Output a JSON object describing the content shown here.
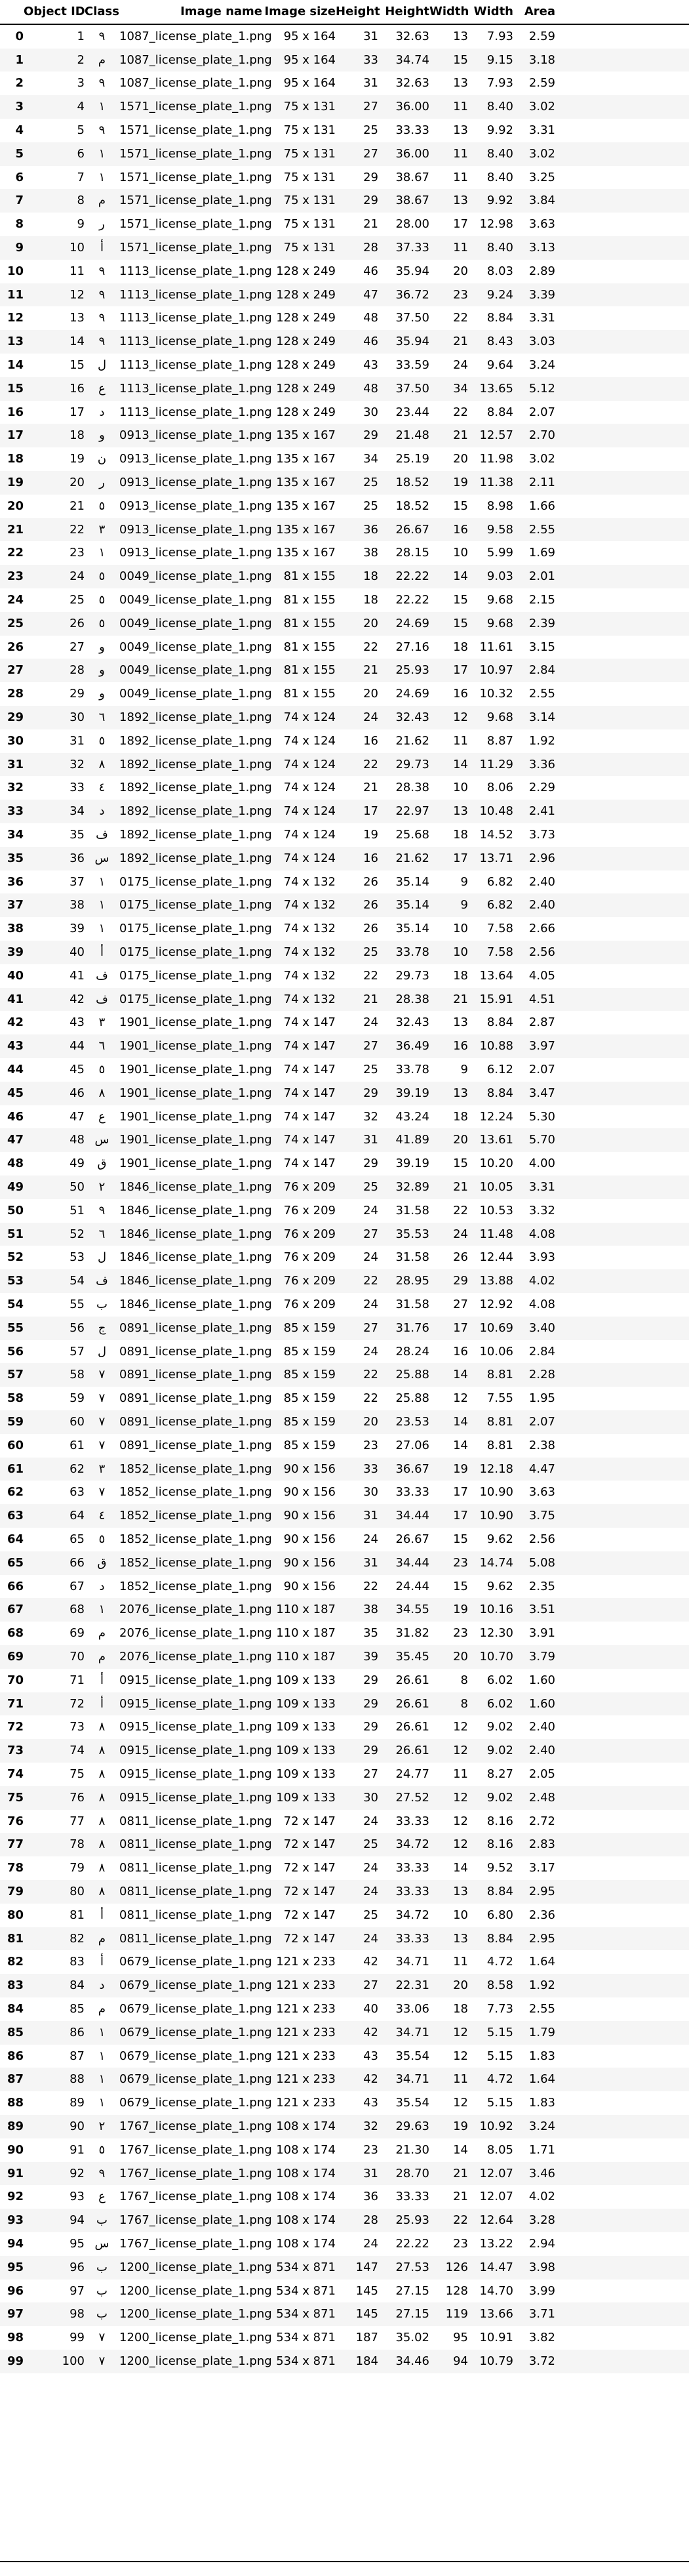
{
  "headers": [
    "",
    "Object ID",
    "Class",
    "Image name",
    "Image size",
    "Height",
    "Height",
    "Width",
    "Width",
    "Area"
  ],
  "rows": [
    [
      "0",
      "1",
      "٩",
      "1087_license_plate_1.png",
      "95 x 164",
      "31",
      "32.63",
      "13",
      "7.93",
      "2.59"
    ],
    [
      "1",
      "2",
      "م",
      "1087_license_plate_1.png",
      "95 x 164",
      "33",
      "34.74",
      "15",
      "9.15",
      "3.18"
    ],
    [
      "2",
      "3",
      "٩",
      "1087_license_plate_1.png",
      "95 x 164",
      "31",
      "32.63",
      "13",
      "7.93",
      "2.59"
    ],
    [
      "3",
      "4",
      "١",
      "1571_license_plate_1.png",
      "75 x 131",
      "27",
      "36.00",
      "11",
      "8.40",
      "3.02"
    ],
    [
      "4",
      "5",
      "٩",
      "1571_license_plate_1.png",
      "75 x 131",
      "25",
      "33.33",
      "13",
      "9.92",
      "3.31"
    ],
    [
      "5",
      "6",
      "١",
      "1571_license_plate_1.png",
      "75 x 131",
      "27",
      "36.00",
      "11",
      "8.40",
      "3.02"
    ],
    [
      "6",
      "7",
      "١",
      "1571_license_plate_1.png",
      "75 x 131",
      "29",
      "38.67",
      "11",
      "8.40",
      "3.25"
    ],
    [
      "7",
      "8",
      "م",
      "1571_license_plate_1.png",
      "75 x 131",
      "29",
      "38.67",
      "13",
      "9.92",
      "3.84"
    ],
    [
      "8",
      "9",
      "ر",
      "1571_license_plate_1.png",
      "75 x 131",
      "21",
      "28.00",
      "17",
      "12.98",
      "3.63"
    ],
    [
      "9",
      "10",
      "أ",
      "1571_license_plate_1.png",
      "75 x 131",
      "28",
      "37.33",
      "11",
      "8.40",
      "3.13"
    ],
    [
      "10",
      "11",
      "٩",
      "1113_license_plate_1.png",
      "128 x 249",
      "46",
      "35.94",
      "20",
      "8.03",
      "2.89"
    ],
    [
      "11",
      "12",
      "٩",
      "1113_license_plate_1.png",
      "128 x 249",
      "47",
      "36.72",
      "23",
      "9.24",
      "3.39"
    ],
    [
      "12",
      "13",
      "٩",
      "1113_license_plate_1.png",
      "128 x 249",
      "48",
      "37.50",
      "22",
      "8.84",
      "3.31"
    ],
    [
      "13",
      "14",
      "٩",
      "1113_license_plate_1.png",
      "128 x 249",
      "46",
      "35.94",
      "21",
      "8.43",
      "3.03"
    ],
    [
      "14",
      "15",
      "ل",
      "1113_license_plate_1.png",
      "128 x 249",
      "43",
      "33.59",
      "24",
      "9.64",
      "3.24"
    ],
    [
      "15",
      "16",
      "ع",
      "1113_license_plate_1.png",
      "128 x 249",
      "48",
      "37.50",
      "34",
      "13.65",
      "5.12"
    ],
    [
      "16",
      "17",
      "د",
      "1113_license_plate_1.png",
      "128 x 249",
      "30",
      "23.44",
      "22",
      "8.84",
      "2.07"
    ],
    [
      "17",
      "18",
      "و",
      "0913_license_plate_1.png",
      "135 x 167",
      "29",
      "21.48",
      "21",
      "12.57",
      "2.70"
    ],
    [
      "18",
      "19",
      "ن",
      "0913_license_plate_1.png",
      "135 x 167",
      "34",
      "25.19",
      "20",
      "11.98",
      "3.02"
    ],
    [
      "19",
      "20",
      "ر",
      "0913_license_plate_1.png",
      "135 x 167",
      "25",
      "18.52",
      "19",
      "11.38",
      "2.11"
    ],
    [
      "20",
      "21",
      "٥",
      "0913_license_plate_1.png",
      "135 x 167",
      "25",
      "18.52",
      "15",
      "8.98",
      "1.66"
    ],
    [
      "21",
      "22",
      "٣",
      "0913_license_plate_1.png",
      "135 x 167",
      "36",
      "26.67",
      "16",
      "9.58",
      "2.55"
    ],
    [
      "22",
      "23",
      "١",
      "0913_license_plate_1.png",
      "135 x 167",
      "38",
      "28.15",
      "10",
      "5.99",
      "1.69"
    ],
    [
      "23",
      "24",
      "٥",
      "0049_license_plate_1.png",
      "81 x 155",
      "18",
      "22.22",
      "14",
      "9.03",
      "2.01"
    ],
    [
      "24",
      "25",
      "٥",
      "0049_license_plate_1.png",
      "81 x 155",
      "18",
      "22.22",
      "15",
      "9.68",
      "2.15"
    ],
    [
      "25",
      "26",
      "٥",
      "0049_license_plate_1.png",
      "81 x 155",
      "20",
      "24.69",
      "15",
      "9.68",
      "2.39"
    ],
    [
      "26",
      "27",
      "و",
      "0049_license_plate_1.png",
      "81 x 155",
      "22",
      "27.16",
      "18",
      "11.61",
      "3.15"
    ],
    [
      "27",
      "28",
      "و",
      "0049_license_plate_1.png",
      "81 x 155",
      "21",
      "25.93",
      "17",
      "10.97",
      "2.84"
    ],
    [
      "28",
      "29",
      "و",
      "0049_license_plate_1.png",
      "81 x 155",
      "20",
      "24.69",
      "16",
      "10.32",
      "2.55"
    ],
    [
      "29",
      "30",
      "٦",
      "1892_license_plate_1.png",
      "74 x 124",
      "24",
      "32.43",
      "12",
      "9.68",
      "3.14"
    ],
    [
      "30",
      "31",
      "٥",
      "1892_license_plate_1.png",
      "74 x 124",
      "16",
      "21.62",
      "11",
      "8.87",
      "1.92"
    ],
    [
      "31",
      "32",
      "٨",
      "1892_license_plate_1.png",
      "74 x 124",
      "22",
      "29.73",
      "14",
      "11.29",
      "3.36"
    ],
    [
      "32",
      "33",
      "٤",
      "1892_license_plate_1.png",
      "74 x 124",
      "21",
      "28.38",
      "10",
      "8.06",
      "2.29"
    ],
    [
      "33",
      "34",
      "د",
      "1892_license_plate_1.png",
      "74 x 124",
      "17",
      "22.97",
      "13",
      "10.48",
      "2.41"
    ],
    [
      "34",
      "35",
      "ف",
      "1892_license_plate_1.png",
      "74 x 124",
      "19",
      "25.68",
      "18",
      "14.52",
      "3.73"
    ],
    [
      "35",
      "36",
      "س",
      "1892_license_plate_1.png",
      "74 x 124",
      "16",
      "21.62",
      "17",
      "13.71",
      "2.96"
    ],
    [
      "36",
      "37",
      "١",
      "0175_license_plate_1.png",
      "74 x 132",
      "26",
      "35.14",
      "9",
      "6.82",
      "2.40"
    ],
    [
      "37",
      "38",
      "١",
      "0175_license_plate_1.png",
      "74 x 132",
      "26",
      "35.14",
      "9",
      "6.82",
      "2.40"
    ],
    [
      "38",
      "39",
      "١",
      "0175_license_plate_1.png",
      "74 x 132",
      "26",
      "35.14",
      "10",
      "7.58",
      "2.66"
    ],
    [
      "39",
      "40",
      "أ",
      "0175_license_plate_1.png",
      "74 x 132",
      "25",
      "33.78",
      "10",
      "7.58",
      "2.56"
    ],
    [
      "40",
      "41",
      "ف",
      "0175_license_plate_1.png",
      "74 x 132",
      "22",
      "29.73",
      "18",
      "13.64",
      "4.05"
    ],
    [
      "41",
      "42",
      "ف",
      "0175_license_plate_1.png",
      "74 x 132",
      "21",
      "28.38",
      "21",
      "15.91",
      "4.51"
    ],
    [
      "42",
      "43",
      "٣",
      "1901_license_plate_1.png",
      "74 x 147",
      "24",
      "32.43",
      "13",
      "8.84",
      "2.87"
    ],
    [
      "43",
      "44",
      "٦",
      "1901_license_plate_1.png",
      "74 x 147",
      "27",
      "36.49",
      "16",
      "10.88",
      "3.97"
    ],
    [
      "44",
      "45",
      "٥",
      "1901_license_plate_1.png",
      "74 x 147",
      "25",
      "33.78",
      "9",
      "6.12",
      "2.07"
    ],
    [
      "45",
      "46",
      "٨",
      "1901_license_plate_1.png",
      "74 x 147",
      "29",
      "39.19",
      "13",
      "8.84",
      "3.47"
    ],
    [
      "46",
      "47",
      "ع",
      "1901_license_plate_1.png",
      "74 x 147",
      "32",
      "43.24",
      "18",
      "12.24",
      "5.30"
    ],
    [
      "47",
      "48",
      "س",
      "1901_license_plate_1.png",
      "74 x 147",
      "31",
      "41.89",
      "20",
      "13.61",
      "5.70"
    ],
    [
      "48",
      "49",
      "ق",
      "1901_license_plate_1.png",
      "74 x 147",
      "29",
      "39.19",
      "15",
      "10.20",
      "4.00"
    ],
    [
      "49",
      "50",
      "٢",
      "1846_license_plate_1.png",
      "76 x 209",
      "25",
      "32.89",
      "21",
      "10.05",
      "3.31"
    ],
    [
      "50",
      "51",
      "٩",
      "1846_license_plate_1.png",
      "76 x 209",
      "24",
      "31.58",
      "22",
      "10.53",
      "3.32"
    ],
    [
      "51",
      "52",
      "٦",
      "1846_license_plate_1.png",
      "76 x 209",
      "27",
      "35.53",
      "24",
      "11.48",
      "4.08"
    ],
    [
      "52",
      "53",
      "ل",
      "1846_license_plate_1.png",
      "76 x 209",
      "24",
      "31.58",
      "26",
      "12.44",
      "3.93"
    ],
    [
      "53",
      "54",
      "ف",
      "1846_license_plate_1.png",
      "76 x 209",
      "22",
      "28.95",
      "29",
      "13.88",
      "4.02"
    ],
    [
      "54",
      "55",
      "ب",
      "1846_license_plate_1.png",
      "76 x 209",
      "24",
      "31.58",
      "27",
      "12.92",
      "4.08"
    ],
    [
      "55",
      "56",
      "ج",
      "0891_license_plate_1.png",
      "85 x 159",
      "27",
      "31.76",
      "17",
      "10.69",
      "3.40"
    ],
    [
      "56",
      "57",
      "ل",
      "0891_license_plate_1.png",
      "85 x 159",
      "24",
      "28.24",
      "16",
      "10.06",
      "2.84"
    ],
    [
      "57",
      "58",
      "٧",
      "0891_license_plate_1.png",
      "85 x 159",
      "22",
      "25.88",
      "14",
      "8.81",
      "2.28"
    ],
    [
      "58",
      "59",
      "٧",
      "0891_license_plate_1.png",
      "85 x 159",
      "22",
      "25.88",
      "12",
      "7.55",
      "1.95"
    ],
    [
      "59",
      "60",
      "٧",
      "0891_license_plate_1.png",
      "85 x 159",
      "20",
      "23.53",
      "14",
      "8.81",
      "2.07"
    ],
    [
      "60",
      "61",
      "٧",
      "0891_license_plate_1.png",
      "85 x 159",
      "23",
      "27.06",
      "14",
      "8.81",
      "2.38"
    ],
    [
      "61",
      "62",
      "٣",
      "1852_license_plate_1.png",
      "90 x 156",
      "33",
      "36.67",
      "19",
      "12.18",
      "4.47"
    ],
    [
      "62",
      "63",
      "٧",
      "1852_license_plate_1.png",
      "90 x 156",
      "30",
      "33.33",
      "17",
      "10.90",
      "3.63"
    ],
    [
      "63",
      "64",
      "٤",
      "1852_license_plate_1.png",
      "90 x 156",
      "31",
      "34.44",
      "17",
      "10.90",
      "3.75"
    ],
    [
      "64",
      "65",
      "٥",
      "1852_license_plate_1.png",
      "90 x 156",
      "24",
      "26.67",
      "15",
      "9.62",
      "2.56"
    ],
    [
      "65",
      "66",
      "ق",
      "1852_license_plate_1.png",
      "90 x 156",
      "31",
      "34.44",
      "23",
      "14.74",
      "5.08"
    ],
    [
      "66",
      "67",
      "د",
      "1852_license_plate_1.png",
      "90 x 156",
      "22",
      "24.44",
      "15",
      "9.62",
      "2.35"
    ],
    [
      "67",
      "68",
      "١",
      "2076_license_plate_1.png",
      "110 x 187",
      "38",
      "34.55",
      "19",
      "10.16",
      "3.51"
    ],
    [
      "68",
      "69",
      "م",
      "2076_license_plate_1.png",
      "110 x 187",
      "35",
      "31.82",
      "23",
      "12.30",
      "3.91"
    ],
    [
      "69",
      "70",
      "م",
      "2076_license_plate_1.png",
      "110 x 187",
      "39",
      "35.45",
      "20",
      "10.70",
      "3.79"
    ],
    [
      "70",
      "71",
      "أ",
      "0915_license_plate_1.png",
      "109 x 133",
      "29",
      "26.61",
      "8",
      "6.02",
      "1.60"
    ],
    [
      "71",
      "72",
      "أ",
      "0915_license_plate_1.png",
      "109 x 133",
      "29",
      "26.61",
      "8",
      "6.02",
      "1.60"
    ],
    [
      "72",
      "73",
      "٨",
      "0915_license_plate_1.png",
      "109 x 133",
      "29",
      "26.61",
      "12",
      "9.02",
      "2.40"
    ],
    [
      "73",
      "74",
      "٨",
      "0915_license_plate_1.png",
      "109 x 133",
      "29",
      "26.61",
      "12",
      "9.02",
      "2.40"
    ],
    [
      "74",
      "75",
      "٨",
      "0915_license_plate_1.png",
      "109 x 133",
      "27",
      "24.77",
      "11",
      "8.27",
      "2.05"
    ],
    [
      "75",
      "76",
      "٨",
      "0915_license_plate_1.png",
      "109 x 133",
      "30",
      "27.52",
      "12",
      "9.02",
      "2.48"
    ],
    [
      "76",
      "77",
      "٨",
      "0811_license_plate_1.png",
      "72 x 147",
      "24",
      "33.33",
      "12",
      "8.16",
      "2.72"
    ],
    [
      "77",
      "78",
      "٨",
      "0811_license_plate_1.png",
      "72 x 147",
      "25",
      "34.72",
      "12",
      "8.16",
      "2.83"
    ],
    [
      "78",
      "79",
      "٨",
      "0811_license_plate_1.png",
      "72 x 147",
      "24",
      "33.33",
      "14",
      "9.52",
      "3.17"
    ],
    [
      "79",
      "80",
      "٨",
      "0811_license_plate_1.png",
      "72 x 147",
      "24",
      "33.33",
      "13",
      "8.84",
      "2.95"
    ],
    [
      "80",
      "81",
      "أ",
      "0811_license_plate_1.png",
      "72 x 147",
      "25",
      "34.72",
      "10",
      "6.80",
      "2.36"
    ],
    [
      "81",
      "82",
      "م",
      "0811_license_plate_1.png",
      "72 x 147",
      "24",
      "33.33",
      "13",
      "8.84",
      "2.95"
    ],
    [
      "82",
      "83",
      "أ",
      "0679_license_plate_1.png",
      "121 x 233",
      "42",
      "34.71",
      "11",
      "4.72",
      "1.64"
    ],
    [
      "83",
      "84",
      "د",
      "0679_license_plate_1.png",
      "121 x 233",
      "27",
      "22.31",
      "20",
      "8.58",
      "1.92"
    ],
    [
      "84",
      "85",
      "م",
      "0679_license_plate_1.png",
      "121 x 233",
      "40",
      "33.06",
      "18",
      "7.73",
      "2.55"
    ],
    [
      "85",
      "86",
      "١",
      "0679_license_plate_1.png",
      "121 x 233",
      "42",
      "34.71",
      "12",
      "5.15",
      "1.79"
    ],
    [
      "86",
      "87",
      "١",
      "0679_license_plate_1.png",
      "121 x 233",
      "43",
      "35.54",
      "12",
      "5.15",
      "1.83"
    ],
    [
      "87",
      "88",
      "١",
      "0679_license_plate_1.png",
      "121 x 233",
      "42",
      "34.71",
      "11",
      "4.72",
      "1.64"
    ],
    [
      "88",
      "89",
      "١",
      "0679_license_plate_1.png",
      "121 x 233",
      "43",
      "35.54",
      "12",
      "5.15",
      "1.83"
    ],
    [
      "89",
      "90",
      "٢",
      "1767_license_plate_1.png",
      "108 x 174",
      "32",
      "29.63",
      "19",
      "10.92",
      "3.24"
    ],
    [
      "90",
      "91",
      "٥",
      "1767_license_plate_1.png",
      "108 x 174",
      "23",
      "21.30",
      "14",
      "8.05",
      "1.71"
    ],
    [
      "91",
      "92",
      "٩",
      "1767_license_plate_1.png",
      "108 x 174",
      "31",
      "28.70",
      "21",
      "12.07",
      "3.46"
    ],
    [
      "92",
      "93",
      "ع",
      "1767_license_plate_1.png",
      "108 x 174",
      "36",
      "33.33",
      "21",
      "12.07",
      "4.02"
    ],
    [
      "93",
      "94",
      "ب",
      "1767_license_plate_1.png",
      "108 x 174",
      "28",
      "25.93",
      "22",
      "12.64",
      "3.28"
    ],
    [
      "94",
      "95",
      "س",
      "1767_license_plate_1.png",
      "108 x 174",
      "24",
      "22.22",
      "23",
      "13.22",
      "2.94"
    ],
    [
      "95",
      "96",
      "ب",
      "1200_license_plate_1.png",
      "534 x 871",
      "147",
      "27.53",
      "126",
      "14.47",
      "3.98"
    ],
    [
      "96",
      "97",
      "ب",
      "1200_license_plate_1.png",
      "534 x 871",
      "145",
      "27.15",
      "128",
      "14.70",
      "3.99"
    ],
    [
      "97",
      "98",
      "ب",
      "1200_license_plate_1.png",
      "534 x 871",
      "145",
      "27.15",
      "119",
      "13.66",
      "3.71"
    ],
    [
      "98",
      "99",
      "٧",
      "1200_license_plate_1.png",
      "534 x 871",
      "187",
      "35.02",
      "95",
      "10.91",
      "3.82"
    ],
    [
      "99",
      "100",
      "٧",
      "1200_license_plate_1.png",
      "534 x 871",
      "184",
      "34.46",
      "94",
      "10.79",
      "3.72"
    ]
  ]
}
